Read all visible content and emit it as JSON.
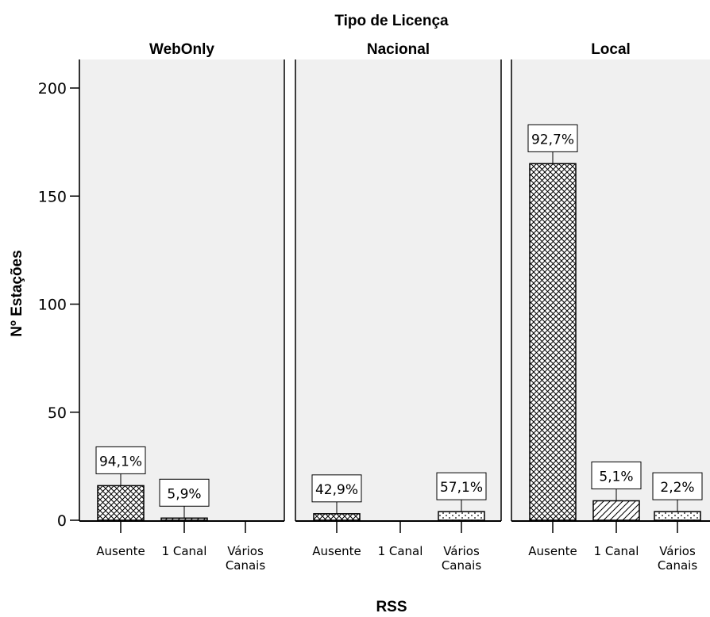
{
  "chart_data": {
    "type": "bar",
    "title": "Tipo de Licença",
    "xlabel": "RSS",
    "ylabel": "Nº Estações",
    "ylim": [
      0,
      210
    ],
    "yticks": [
      0,
      50,
      100,
      150,
      200
    ],
    "categories": [
      "Ausente",
      "1 Canal",
      "Vários Canais"
    ],
    "category_lines": [
      [
        "Ausente"
      ],
      [
        "1 Canal"
      ],
      [
        "Vários",
        "Canais"
      ]
    ],
    "grid": false,
    "patterns": [
      "crosshatch",
      "diagonal",
      "dots"
    ],
    "colors": {
      "panel_bg": "#f0f0f0",
      "bar_fill": "#ffffff",
      "stroke": "#000000"
    },
    "panels": [
      {
        "name": "WebOnly",
        "values": [
          16,
          1,
          0
        ],
        "labels": [
          "94,1%",
          "5,9%",
          ""
        ]
      },
      {
        "name": "Nacional",
        "values": [
          3,
          0,
          4
        ],
        "labels": [
          "42,9%",
          "",
          "57,1%"
        ]
      },
      {
        "name": "Local",
        "values": [
          165,
          9,
          4
        ],
        "labels": [
          "92,7%",
          "5,1%",
          "2,2%"
        ]
      }
    ]
  }
}
